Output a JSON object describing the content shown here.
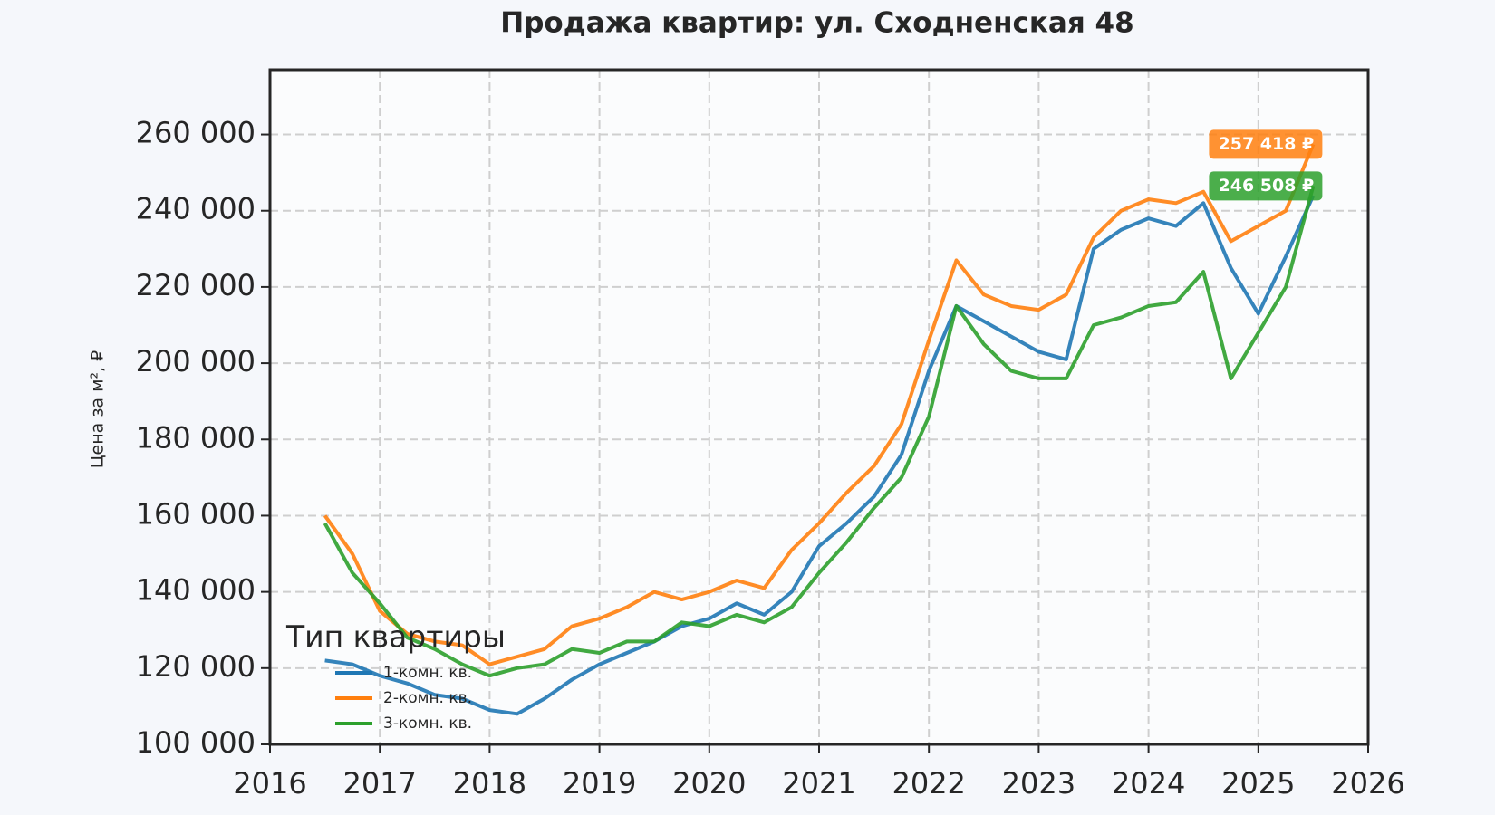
{
  "chart_data": {
    "type": "line",
    "title": "Продажа квартир: ул. Сходненская 48",
    "y_label": "Цена за м², ₽",
    "x": [
      2016.5,
      2016.75,
      2017.0,
      2017.25,
      2017.5,
      2017.75,
      2018.0,
      2018.25,
      2018.5,
      2018.75,
      2019.0,
      2019.25,
      2019.5,
      2019.75,
      2020.0,
      2020.25,
      2020.5,
      2020.75,
      2021.0,
      2021.25,
      2021.5,
      2021.75,
      2022.0,
      2022.25,
      2022.5,
      2022.75,
      2023.0,
      2023.25,
      2023.5,
      2023.75,
      2024.0,
      2024.25,
      2024.5,
      2024.75,
      2025.0,
      2025.25,
      2025.5
    ],
    "series": [
      {
        "name": "1-комн. кв.",
        "color": "#1f77b4",
        "values": [
          122000,
          121000,
          118000,
          116000,
          113000,
          112000,
          109000,
          108000,
          112000,
          117000,
          121000,
          124000,
          127000,
          131000,
          133000,
          137000,
          134000,
          140000,
          152000,
          158000,
          165000,
          176000,
          198000,
          215000,
          211000,
          207000,
          203000,
          201000,
          230000,
          235000,
          238000,
          236000,
          242000,
          225000,
          213000,
          228000,
          244000
        ]
      },
      {
        "name": "2-комн. кв.",
        "color": "#ff7f0e",
        "values": [
          160000,
          150000,
          135000,
          129000,
          127000,
          126000,
          121000,
          123000,
          125000,
          131000,
          133000,
          136000,
          140000,
          138000,
          140000,
          143000,
          141000,
          151000,
          158000,
          166000,
          173000,
          184000,
          206000,
          227000,
          218000,
          215000,
          214000,
          218000,
          233000,
          240000,
          243000,
          242000,
          245000,
          232000,
          236000,
          240000,
          257418
        ],
        "value_labels": [
          null,
          null,
          null,
          null,
          null,
          null,
          null,
          null,
          null,
          null,
          null,
          null,
          null,
          null,
          null,
          null,
          null,
          null,
          null,
          null,
          null,
          null,
          null,
          null,
          null,
          null,
          null,
          null,
          null,
          null,
          null,
          null,
          null,
          null,
          null,
          null,
          "257 418 ₽"
        ]
      },
      {
        "name": "3-комн. кв.",
        "color": "#2ca02c",
        "values": [
          158000,
          145000,
          137000,
          128000,
          125000,
          121000,
          118000,
          120000,
          121000,
          125000,
          124000,
          127000,
          127000,
          132000,
          131000,
          134000,
          132000,
          136000,
          145000,
          153000,
          162000,
          170000,
          186000,
          215000,
          205000,
          198000,
          196000,
          196000,
          210000,
          212000,
          215000,
          216000,
          224000,
          196000,
          208000,
          220000,
          246508
        ],
        "value_labels": [
          null,
          null,
          null,
          null,
          null,
          null,
          null,
          null,
          null,
          null,
          null,
          null,
          null,
          null,
          null,
          null,
          null,
          null,
          null,
          null,
          null,
          null,
          null,
          null,
          null,
          null,
          null,
          null,
          null,
          null,
          null,
          null,
          null,
          null,
          null,
          null,
          "246 508 ₽"
        ]
      }
    ],
    "legend_title": "Тип квартиры",
    "legend": "lower left",
    "grid": true,
    "xlim": [
      2016,
      2026
    ],
    "xticks": [
      2016,
      2017,
      2018,
      2019,
      2020,
      2021,
      2022,
      2023,
      2024,
      2025,
      2026
    ],
    "ylim": [
      100000,
      277000
    ],
    "yticks": [
      {
        "value": 100000,
        "label": "100 000"
      },
      {
        "value": 120000,
        "label": "120 000"
      },
      {
        "value": 140000,
        "label": "140 000"
      },
      {
        "value": 160000,
        "label": "160 000"
      },
      {
        "value": 180000,
        "label": "180 000"
      },
      {
        "value": 200000,
        "label": "200 000"
      },
      {
        "value": 220000,
        "label": "220 000"
      },
      {
        "value": 240000,
        "label": "240 000"
      },
      {
        "value": 260000,
        "label": "260 000"
      }
    ]
  }
}
